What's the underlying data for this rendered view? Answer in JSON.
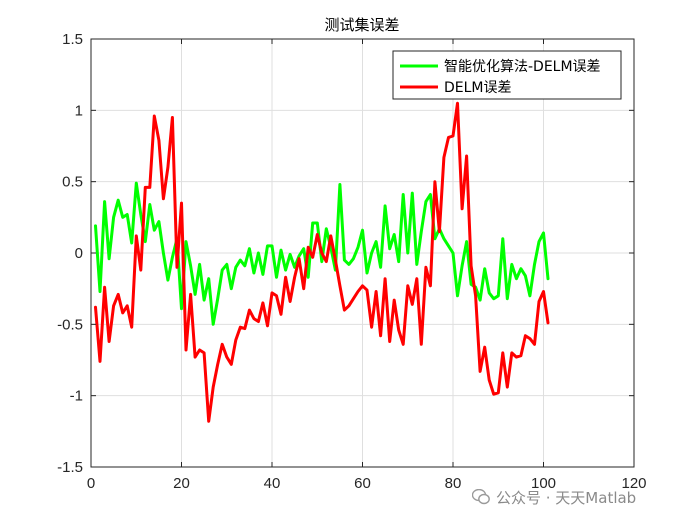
{
  "chart_data": {
    "type": "line",
    "title": "测试集误差",
    "xlabel": "",
    "ylabel": "",
    "xlim": [
      0,
      120
    ],
    "ylim": [
      -1.5,
      1.5
    ],
    "xticks": [
      0,
      20,
      40,
      60,
      80,
      100,
      120
    ],
    "yticks": [
      -1.5,
      -1,
      -0.5,
      0,
      0.5,
      1,
      1.5
    ],
    "xtick_labels": [
      "0",
      "20",
      "40",
      "60",
      "80",
      "100",
      "120"
    ],
    "ytick_labels": [
      "-1.5",
      "-1",
      "-0.5",
      "0",
      "0.5",
      "1",
      "1.5"
    ],
    "grid": true,
    "legend_position": "top-right",
    "x": [
      1,
      2,
      3,
      4,
      5,
      6,
      7,
      8,
      9,
      10,
      11,
      12,
      13,
      14,
      15,
      16,
      17,
      18,
      19,
      20,
      21,
      22,
      23,
      24,
      25,
      26,
      27,
      28,
      29,
      30,
      31,
      32,
      33,
      34,
      35,
      36,
      37,
      38,
      39,
      40,
      41,
      42,
      43,
      44,
      45,
      46,
      47,
      48,
      49,
      50,
      51,
      52,
      53,
      54,
      55,
      56,
      57,
      58,
      59,
      60,
      61,
      62,
      63,
      64,
      65,
      66,
      67,
      68,
      69,
      70,
      71,
      72,
      73,
      74,
      75,
      76,
      77,
      78,
      79,
      80,
      81,
      82,
      83,
      84,
      85,
      86,
      87,
      88,
      89,
      90,
      91,
      92,
      93,
      94,
      95,
      96,
      97,
      98,
      99,
      100,
      101
    ],
    "series": [
      {
        "name": "智能优化算法-DELM误差",
        "color": "#00ff00",
        "values": [
          0.19,
          -0.27,
          0.36,
          -0.04,
          0.25,
          0.37,
          0.25,
          0.27,
          0.07,
          0.49,
          0.27,
          0.08,
          0.34,
          0.16,
          0.22,
          0.0,
          -0.19,
          -0.03,
          0.1,
          -0.39,
          0.08,
          -0.09,
          -0.29,
          -0.08,
          -0.33,
          -0.18,
          -0.5,
          -0.32,
          -0.12,
          -0.08,
          -0.25,
          -0.1,
          -0.05,
          -0.09,
          0.03,
          -0.14,
          0.0,
          -0.15,
          0.05,
          0.05,
          -0.17,
          0.02,
          -0.12,
          -0.01,
          -0.1,
          -0.02,
          0.03,
          -0.17,
          0.21,
          0.21,
          -0.06,
          0.17,
          0.04,
          -0.12,
          0.48,
          -0.05,
          -0.08,
          -0.04,
          0.04,
          0.16,
          -0.14,
          0.0,
          0.08,
          -0.1,
          0.33,
          0.03,
          0.13,
          -0.06,
          0.41,
          0.0,
          0.42,
          -0.08,
          0.15,
          0.36,
          0.41,
          0.1,
          0.17,
          0.1,
          0.05,
          0.0,
          -0.3,
          -0.09,
          0.08,
          -0.22,
          -0.24,
          -0.33,
          -0.11,
          -0.28,
          -0.32,
          -0.3,
          0.1,
          -0.32,
          -0.08,
          -0.18,
          -0.11,
          -0.16,
          -0.3,
          -0.08,
          0.08,
          0.14,
          -0.18
        ]
      },
      {
        "name": "DELM误差",
        "color": "#ff0000",
        "values": [
          -0.38,
          -0.76,
          -0.24,
          -0.62,
          -0.37,
          -0.29,
          -0.42,
          -0.37,
          -0.52,
          0.12,
          -0.12,
          0.46,
          0.46,
          0.96,
          0.79,
          0.38,
          0.6,
          0.95,
          -0.1,
          0.35,
          -0.68,
          -0.29,
          -0.73,
          -0.68,
          -0.7,
          -1.18,
          -0.94,
          -0.78,
          -0.64,
          -0.73,
          -0.78,
          -0.61,
          -0.52,
          -0.53,
          -0.4,
          -0.46,
          -0.48,
          -0.35,
          -0.51,
          -0.28,
          -0.3,
          -0.43,
          -0.17,
          -0.34,
          -0.17,
          -0.04,
          -0.25,
          0.04,
          -0.03,
          0.13,
          0.0,
          -0.06,
          0.12,
          -0.05,
          -0.23,
          -0.4,
          -0.37,
          -0.32,
          -0.27,
          -0.23,
          -0.26,
          -0.52,
          -0.27,
          -0.58,
          -0.18,
          -0.62,
          -0.33,
          -0.54,
          -0.64,
          -0.23,
          -0.36,
          -0.18,
          -0.64,
          -0.1,
          -0.23,
          0.5,
          0.15,
          0.67,
          0.81,
          0.82,
          1.05,
          0.31,
          0.68,
          -0.09,
          -0.3,
          -0.83,
          -0.66,
          -0.89,
          -0.99,
          -0.98,
          -0.7,
          -0.94,
          -0.7,
          -0.73,
          -0.72,
          -0.58,
          -0.6,
          -0.64,
          -0.34,
          -0.27,
          -0.49
        ]
      }
    ]
  },
  "watermark": {
    "text": "公众号 · 天天Matlab",
    "icon": "wechat-icon"
  }
}
